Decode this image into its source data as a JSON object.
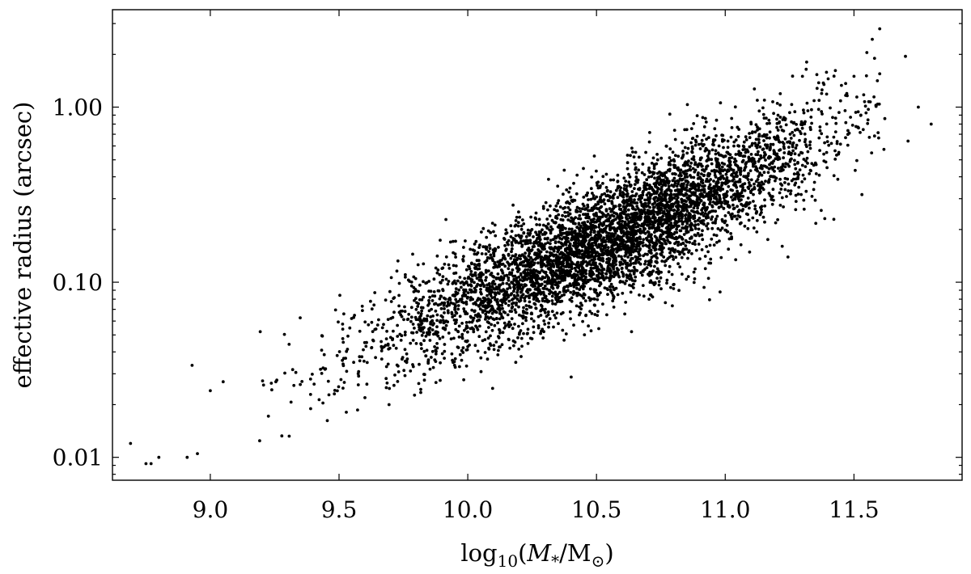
{
  "chart_data": {
    "type": "scatter",
    "title": "",
    "xlabel_parts": {
      "prefix": "log",
      "sub": "10",
      "open": "(",
      "mstar": "M",
      "mstar_sub": "*",
      "slash": "/M",
      "sun": "⊙",
      "close": ")"
    },
    "ylabel": "effective radius (arcsec)",
    "xlim": [
      8.62,
      11.92
    ],
    "ylim": [
      0.0074,
      3.6
    ],
    "yscale": "log",
    "grid": false,
    "legend": "none",
    "x_ticks": [
      9.0,
      9.5,
      10.0,
      10.5,
      11.0,
      11.5
    ],
    "x_tick_labels": [
      "9.0",
      "9.5",
      "10.0",
      "10.5",
      "11.0",
      "11.5"
    ],
    "y_ticks": [
      0.01,
      0.1,
      1.0
    ],
    "y_tick_labels": [
      "0.01",
      "0.10",
      "1.00"
    ],
    "marker_color": "#000000",
    "relation": {
      "description_points": [
        [
          9.0,
          0.016
        ],
        [
          9.5,
          0.038
        ],
        [
          10.0,
          0.08
        ],
        [
          10.5,
          0.16
        ],
        [
          11.0,
          0.36
        ],
        [
          11.5,
          0.8
        ]
      ]
    },
    "points": [
      [
        8.69,
        0.012
      ],
      [
        8.75,
        0.0092
      ],
      [
        8.77,
        0.0092
      ],
      [
        8.8,
        0.01
      ],
      [
        8.91,
        0.01
      ],
      [
        8.95,
        0.0105
      ],
      [
        9.0,
        0.024
      ],
      [
        9.05,
        0.027
      ],
      [
        11.6,
        2.8
      ],
      [
        11.7,
        1.95
      ],
      [
        11.75,
        1.0
      ],
      [
        11.8,
        0.8
      ],
      [
        11.71,
        0.64
      ],
      [
        11.62,
        0.86
      ],
      [
        11.55,
        2.05
      ],
      [
        11.58,
        1.9
      ],
      [
        11.6,
        1.55
      ],
      [
        11.5,
        1.5
      ],
      [
        11.4,
        1.45
      ],
      [
        11.3,
        1.5
      ]
    ],
    "bulk_sample": {
      "count": 5200,
      "x_range": [
        8.85,
        11.62
      ],
      "scatter_dex": 0.17
    }
  }
}
